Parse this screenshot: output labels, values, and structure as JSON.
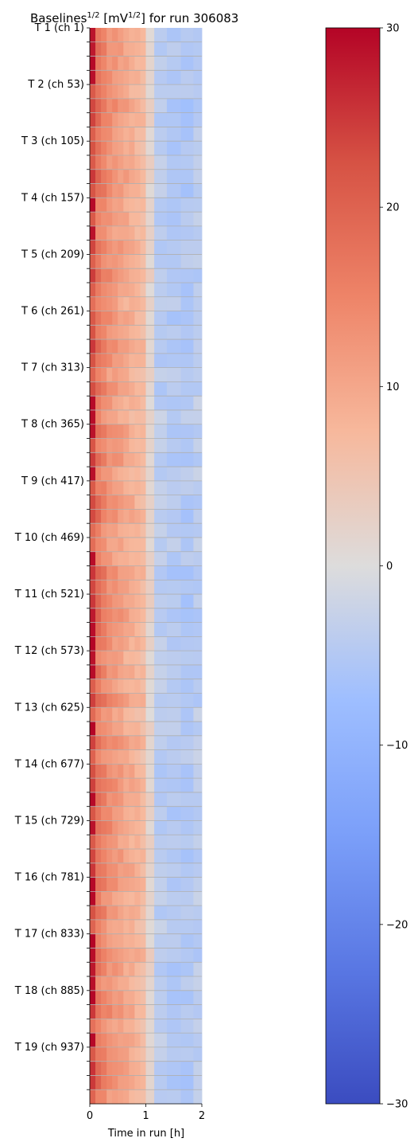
{
  "chart_data": [
    {
      "type": "heatmap",
      "title_main": "Baselines",
      "title_exp1": "1/2",
      "title_mid": " [mV",
      "title_exp2": "1/2",
      "title_tail": "] for run 306083",
      "xlabel": "Time in run [h]",
      "x_ticks": [
        "0",
        "1",
        "2"
      ],
      "xlim": [
        0,
        2
      ],
      "y_tick_labels": [
        "T 1 (ch 1)",
        "T 2 (ch 53)",
        "T 3 (ch 105)",
        "T 4 (ch 157)",
        "T 5 (ch 209)",
        "T 6 (ch 261)",
        "T 7 (ch 313)",
        "T 8 (ch 365)",
        "T 9 (ch 417)",
        "T 10 (ch 469)",
        "T 11 (ch 521)",
        "T 12 (ch 573)",
        "T 13 (ch 625)",
        "T 14 (ch 677)",
        "T 15 (ch 729)",
        "T 16 (ch 781)",
        "T 17 (ch 833)",
        "T 18 (ch 885)",
        "T 19 (ch 937)"
      ],
      "channel_start_labels": [
        1,
        53,
        105,
        157,
        209,
        261,
        313,
        365,
        417,
        469,
        521,
        573,
        625,
        677,
        729,
        781,
        833,
        885,
        937
      ],
      "colormap": "coolwarm",
      "color_range": [
        -30,
        30
      ],
      "grid": "horizontal lines between groups",
      "value_profile_hours": [
        0.05,
        0.15,
        0.25,
        0.35,
        0.45,
        0.55,
        0.65,
        0.75,
        0.85,
        0.95,
        1.05,
        1.25,
        1.5,
        1.75,
        1.95
      ],
      "value_profile_typical": [
        22,
        17,
        15,
        13,
        12,
        11,
        10,
        9,
        8,
        7,
        2,
        -4,
        -5,
        -5,
        -4
      ],
      "red_first_column_groups_note": "first column near 28–30 in many rows"
    },
    {
      "type": "colorbar",
      "ticks": [
        "30",
        "20",
        "10",
        "0",
        "−10",
        "−20",
        "−30"
      ],
      "tick_values": [
        30,
        20,
        10,
        0,
        -10,
        -20,
        -30
      ],
      "colors": {
        "low": "#3b4cc0",
        "mid": "#dddddd",
        "high": "#b40426"
      }
    }
  ]
}
